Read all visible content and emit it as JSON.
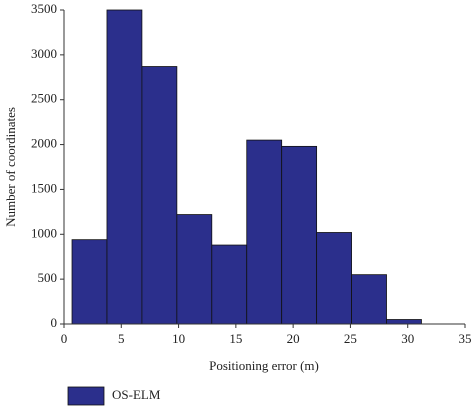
{
  "chart_data": {
    "type": "histogram",
    "x_label": "Positioning error (m)",
    "y_label": "Number of coordinates",
    "bins": [
      0.7,
      3.75,
      6.8,
      9.85,
      12.9,
      15.95,
      19.0,
      22.05,
      25.1,
      28.15,
      31.2
    ],
    "series": [
      {
        "name": "OS-ELM",
        "color": "#2b2f8c",
        "values": [
          940,
          3500,
          2870,
          1220,
          880,
          2050,
          1980,
          1020,
          550,
          50
        ]
      }
    ],
    "xlim": [
      0,
      35
    ],
    "xticks": [
      0,
      5,
      10,
      15,
      20,
      25,
      30,
      35
    ],
    "ylim": [
      0,
      3500
    ],
    "yticks": [
      0,
      500,
      1000,
      1500,
      2000,
      2500,
      3000,
      3500
    ],
    "legend": "bottom-left",
    "grid": false
  }
}
